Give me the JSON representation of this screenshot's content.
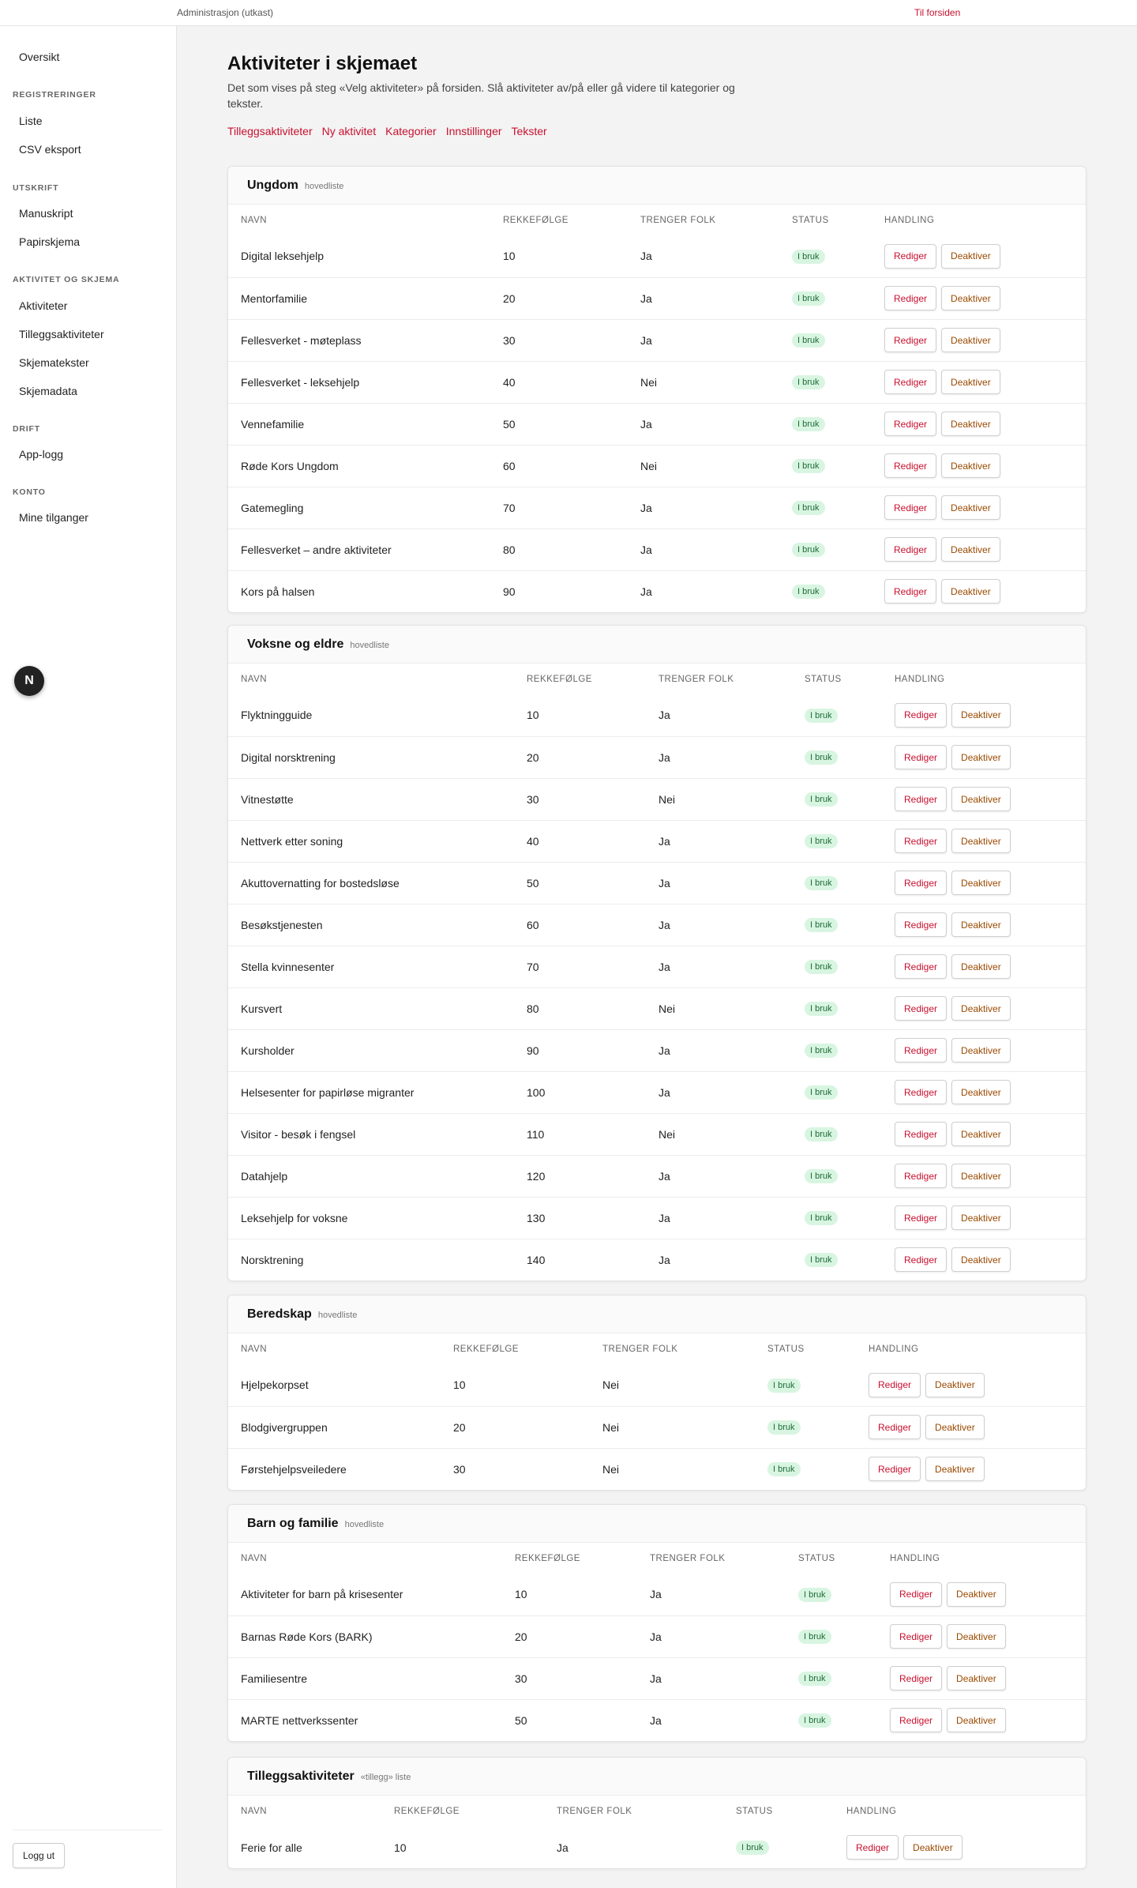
{
  "topbar": {
    "crumb": "Administrasjon (utkast)",
    "home_link": "Til forsiden"
  },
  "sidebar": {
    "overview": "Oversikt",
    "sections": [
      {
        "label": "Registreringer",
        "items": [
          "Liste",
          "CSV eksport"
        ]
      },
      {
        "label": "Utskrift",
        "items": [
          "Manuskript",
          "Papirskjema"
        ]
      },
      {
        "label": "Aktivitet og skjema",
        "items": [
          "Aktiviteter",
          "Tilleggsaktiviteter",
          "Skjematekster",
          "Skjemadata"
        ]
      },
      {
        "label": "Drift",
        "items": [
          "App-logg"
        ]
      },
      {
        "label": "Konto",
        "items": [
          "Mine tilganger"
        ]
      }
    ],
    "logout": "Logg ut"
  },
  "badge": "N",
  "page": {
    "title": "Aktiviteter i skjemaet",
    "description": "Det som vises på steg «Velg aktiviteter» på forsiden. Slå aktiviteter av/på eller gå videre til kategorier og tekster.",
    "links": [
      "Tilleggsaktiviteter",
      "Ny aktivitet",
      "Kategorier",
      "Innstillinger",
      "Tekster"
    ]
  },
  "table_headers": [
    "Navn",
    "Rekkefølge",
    "Trenger folk",
    "Status",
    "Handling"
  ],
  "actions": {
    "edit": "Rediger",
    "deactivate": "Deaktiver"
  },
  "status_label": "I bruk",
  "groups": [
    {
      "title": "Ungdom",
      "subtitle": "hovedliste",
      "rows": [
        {
          "name": "Digital leksehjelp",
          "order": "10",
          "needs": "Ja"
        },
        {
          "name": "Mentorfamilie",
          "order": "20",
          "needs": "Ja"
        },
        {
          "name": "Fellesverket - møteplass",
          "order": "30",
          "needs": "Ja"
        },
        {
          "name": "Fellesverket - leksehjelp",
          "order": "40",
          "needs": "Nei"
        },
        {
          "name": "Vennefamilie",
          "order": "50",
          "needs": "Ja"
        },
        {
          "name": "Røde Kors Ungdom",
          "order": "60",
          "needs": "Nei"
        },
        {
          "name": "Gatemegling",
          "order": "70",
          "needs": "Ja"
        },
        {
          "name": "Fellesverket – andre aktiviteter",
          "order": "80",
          "needs": "Ja"
        },
        {
          "name": "Kors på halsen",
          "order": "90",
          "needs": "Ja"
        }
      ]
    },
    {
      "title": "Voksne og eldre",
      "subtitle": "hovedliste",
      "rows": [
        {
          "name": "Flyktningguide",
          "order": "10",
          "needs": "Ja"
        },
        {
          "name": "Digital norsktrening",
          "order": "20",
          "needs": "Ja"
        },
        {
          "name": "Vitnestøtte",
          "order": "30",
          "needs": "Nei"
        },
        {
          "name": "Nettverk etter soning",
          "order": "40",
          "needs": "Ja"
        },
        {
          "name": "Akuttovernatting for bostedsløse",
          "order": "50",
          "needs": "Ja"
        },
        {
          "name": "Besøkstjenesten",
          "order": "60",
          "needs": "Ja"
        },
        {
          "name": "Stella kvinnesenter",
          "order": "70",
          "needs": "Ja"
        },
        {
          "name": "Kursvert",
          "order": "80",
          "needs": "Nei"
        },
        {
          "name": "Kursholder",
          "order": "90",
          "needs": "Ja"
        },
        {
          "name": "Helsesenter for papirløse migranter",
          "order": "100",
          "needs": "Ja"
        },
        {
          "name": "Visitor - besøk i fengsel",
          "order": "110",
          "needs": "Nei"
        },
        {
          "name": "Datahjelp",
          "order": "120",
          "needs": "Ja"
        },
        {
          "name": "Leksehjelp for voksne",
          "order": "130",
          "needs": "Ja"
        },
        {
          "name": "Norsktrening",
          "order": "140",
          "needs": "Ja"
        }
      ]
    },
    {
      "title": "Beredskap",
      "subtitle": "hovedliste",
      "rows": [
        {
          "name": "Hjelpekorpset",
          "order": "10",
          "needs": "Nei"
        },
        {
          "name": "Blodgivergruppen",
          "order": "20",
          "needs": "Nei"
        },
        {
          "name": "Førstehjelpsveiledere",
          "order": "30",
          "needs": "Nei"
        }
      ]
    },
    {
      "title": "Barn og familie",
      "subtitle": "hovedliste",
      "rows": [
        {
          "name": "Aktiviteter for barn på krisesenter",
          "order": "10",
          "needs": "Ja"
        },
        {
          "name": "Barnas Røde Kors (BARK)",
          "order": "20",
          "needs": "Ja"
        },
        {
          "name": "Familiesentre",
          "order": "30",
          "needs": "Ja"
        },
        {
          "name": "MARTE nettverkssenter",
          "order": "50",
          "needs": "Ja"
        }
      ]
    },
    {
      "title": "Tilleggsaktiviteter",
      "subtitle": "«tillegg» liste",
      "rows": [
        {
          "name": "Ferie for alle",
          "order": "10",
          "needs": "Ja"
        }
      ]
    }
  ]
}
